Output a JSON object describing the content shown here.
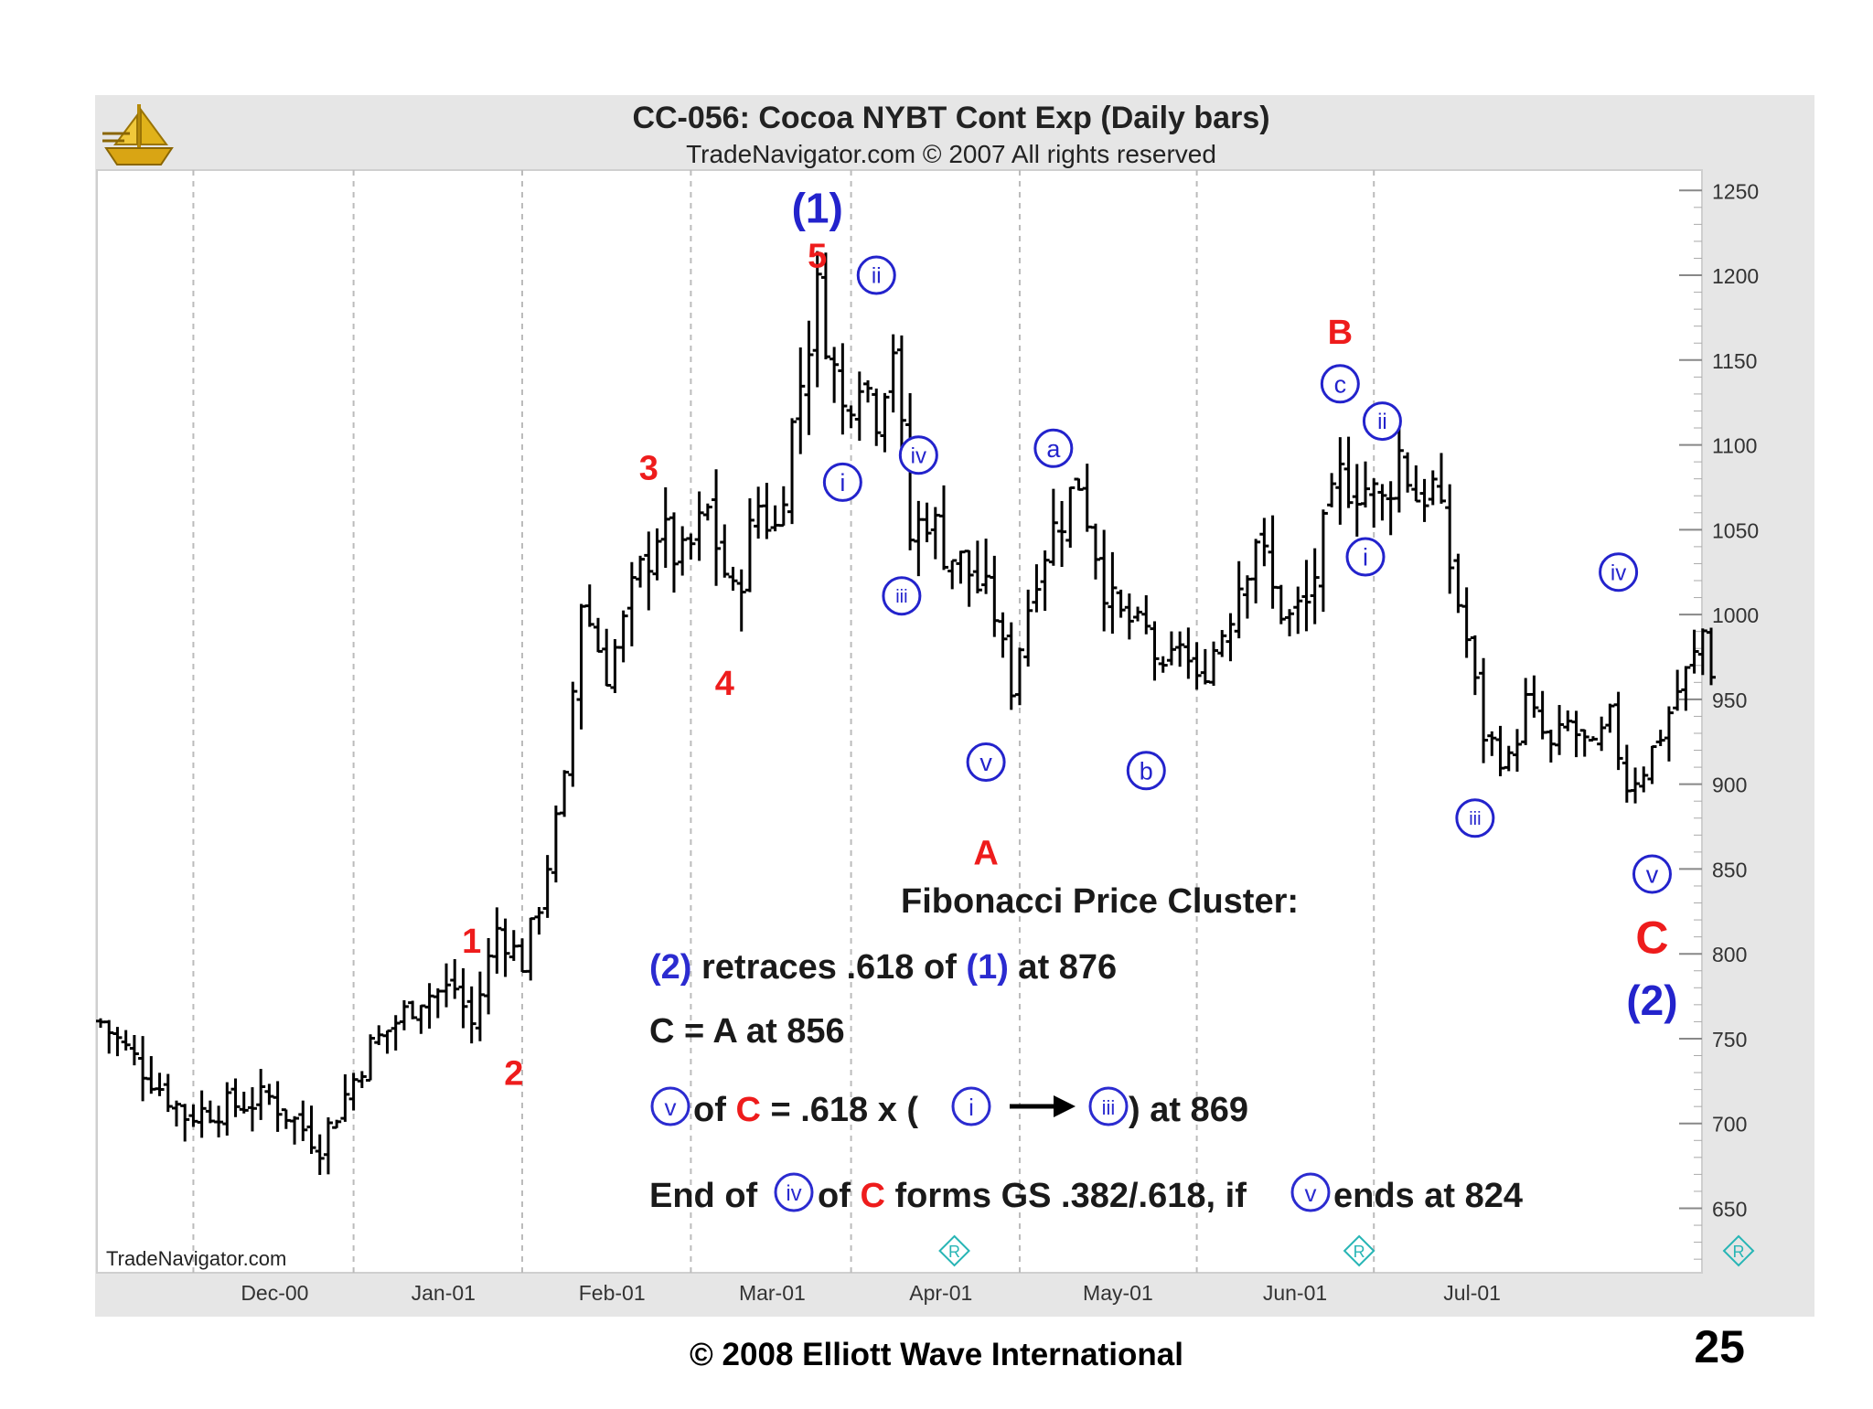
{
  "slide": {
    "copyright": "© 2008 Elliott Wave International",
    "page_number": "25"
  },
  "chart_data": {
    "type": "bar",
    "subtype": "ohlc",
    "title": "CC-056:  Cocoa NYBT Cont Exp  (Daily bars)",
    "subtitle": "TradeNavigator.com © 2007 All rights reserved",
    "watermark": "TradeNavigator.com",
    "logo": "gold-sailboat-logo",
    "y_ticks": [
      "1250",
      "1200",
      "1150",
      "1100",
      "1050",
      "1000",
      "950",
      "900",
      "850",
      "800",
      "750",
      "700",
      "650"
    ],
    "ylim": [
      612,
      1262
    ],
    "y_axis_side": "right",
    "x_ticks": [
      "Dec-00",
      "Jan-01",
      "Feb-01",
      "Mar-01",
      "Apr-01",
      "May-01",
      "Jun-01",
      "Jul-01"
    ],
    "grid": "vertical-dashed",
    "legend": "none",
    "colors": {
      "bars": "#000000",
      "red_label": "#ee1c1c",
      "blue_label": "#2323cc",
      "grid": "#bbbbbb",
      "frame": "#e6e6e6",
      "roll_marker": "#27b5b5"
    },
    "anchors": [
      {
        "t": 0,
        "p": 760
      },
      {
        "t": 10,
        "p": 705
      },
      {
        "t": 20,
        "p": 715
      },
      {
        "t": 26,
        "p": 688
      },
      {
        "t": 32,
        "p": 745
      },
      {
        "t": 38,
        "p": 775
      },
      {
        "t": 42,
        "p": 780
      },
      {
        "t": 44,
        "p": 758
      },
      {
        "t": 47,
        "p": 815
      },
      {
        "t": 50,
        "p": 795
      },
      {
        "t": 52,
        "p": 830
      },
      {
        "t": 55,
        "p": 900
      },
      {
        "t": 57,
        "p": 1010
      },
      {
        "t": 60,
        "p": 965
      },
      {
        "t": 63,
        "p": 1010
      },
      {
        "t": 66,
        "p": 1050
      },
      {
        "t": 69,
        "p": 1030
      },
      {
        "t": 72,
        "p": 1060
      },
      {
        "t": 75,
        "p": 1008
      },
      {
        "t": 78,
        "p": 1065
      },
      {
        "t": 80,
        "p": 1050
      },
      {
        "t": 82,
        "p": 1110
      },
      {
        "t": 85,
        "p": 1190
      },
      {
        "t": 88,
        "p": 1120
      },
      {
        "t": 90,
        "p": 1145
      },
      {
        "t": 92,
        "p": 1120
      },
      {
        "t": 94,
        "p": 1160
      },
      {
        "t": 96,
        "p": 1045
      },
      {
        "t": 98,
        "p": 1060
      },
      {
        "t": 100,
        "p": 1040
      },
      {
        "t": 103,
        "p": 1025
      },
      {
        "t": 106,
        "p": 1000
      },
      {
        "t": 108,
        "p": 958
      },
      {
        "t": 111,
        "p": 1030
      },
      {
        "t": 114,
        "p": 1060
      },
      {
        "t": 116,
        "p": 1080
      },
      {
        "t": 118,
        "p": 1040
      },
      {
        "t": 120,
        "p": 1002
      },
      {
        "t": 124,
        "p": 990
      },
      {
        "t": 126,
        "p": 962
      },
      {
        "t": 128,
        "p": 985
      },
      {
        "t": 130,
        "p": 958
      },
      {
        "t": 133,
        "p": 990
      },
      {
        "t": 135,
        "p": 1020
      },
      {
        "t": 137,
        "p": 1048
      },
      {
        "t": 139,
        "p": 1012
      },
      {
        "t": 141,
        "p": 998
      },
      {
        "t": 143,
        "p": 1005
      },
      {
        "t": 145,
        "p": 1045
      },
      {
        "t": 147,
        "p": 1080
      },
      {
        "t": 150,
        "p": 1075
      },
      {
        "t": 152,
        "p": 1065
      },
      {
        "t": 154,
        "p": 1095
      },
      {
        "t": 156,
        "p": 1070
      },
      {
        "t": 158,
        "p": 1075
      },
      {
        "t": 160,
        "p": 1030
      },
      {
        "t": 162,
        "p": 985
      },
      {
        "t": 164,
        "p": 930
      },
      {
        "t": 167,
        "p": 912
      },
      {
        "t": 169,
        "p": 948
      },
      {
        "t": 172,
        "p": 920
      },
      {
        "t": 174,
        "p": 935
      },
      {
        "t": 177,
        "p": 918
      },
      {
        "t": 179,
        "p": 938
      },
      {
        "t": 181,
        "p": 900
      },
      {
        "t": 183,
        "p": 910
      },
      {
        "t": 185,
        "p": 930
      },
      {
        "t": 187,
        "p": 955
      },
      {
        "t": 189,
        "p": 975
      },
      {
        "t": 190,
        "p": 990
      },
      {
        "t": 191,
        "p": 968
      }
    ],
    "gaps_after": [
      44,
      56,
      143,
      147
    ],
    "x_tick_positions_t": [
      20,
      40,
      60,
      79,
      99,
      120,
      141,
      162
    ],
    "wave_labels": [
      {
        "text": "(1)",
        "color": "red-blue",
        "style": "blue-paren-large",
        "t": 85,
        "p": 1240
      },
      {
        "text": "5",
        "style": "red",
        "t": 85,
        "p": 1212
      },
      {
        "text": "ii",
        "style": "blue-circle",
        "t": 92,
        "p": 1200
      },
      {
        "text": "3",
        "style": "red",
        "t": 65,
        "p": 1087
      },
      {
        "text": "i",
        "style": "blue-circle",
        "t": 88,
        "p": 1078
      },
      {
        "text": "iv",
        "style": "blue-circle",
        "t": 97,
        "p": 1094
      },
      {
        "text": "a",
        "style": "blue-circle",
        "t": 113,
        "p": 1098
      },
      {
        "text": "iii",
        "style": "blue-circle",
        "t": 95,
        "p": 1011
      },
      {
        "text": "4",
        "style": "red",
        "t": 74,
        "p": 960
      },
      {
        "text": "v",
        "style": "blue-circle",
        "t": 105,
        "p": 913
      },
      {
        "text": "b",
        "style": "blue-circle",
        "t": 124,
        "p": 908
      },
      {
        "text": "A",
        "style": "red",
        "t": 105,
        "p": 860
      },
      {
        "text": "B",
        "style": "red",
        "t": 147,
        "p": 1167
      },
      {
        "text": "c",
        "style": "blue-circle",
        "t": 147,
        "p": 1136
      },
      {
        "text": "ii",
        "style": "blue-circle",
        "t": 152,
        "p": 1114
      },
      {
        "text": "i",
        "style": "blue-circle",
        "t": 150,
        "p": 1034
      },
      {
        "text": "iv",
        "style": "blue-circle",
        "t": 180,
        "p": 1025
      },
      {
        "text": "iii",
        "style": "blue-circle",
        "t": 163,
        "p": 880
      },
      {
        "text": "v",
        "style": "blue-circle",
        "t": 184,
        "p": 847
      },
      {
        "text": "1",
        "style": "red",
        "t": 44,
        "p": 808
      },
      {
        "text": "2",
        "style": "red",
        "t": 49,
        "p": 730
      },
      {
        "text": "C",
        "style": "red-large",
        "t": 184,
        "p": 810
      },
      {
        "text": "(2)",
        "style": "blue-paren-large",
        "t": 184,
        "p": 773
      }
    ],
    "roll_markers_t": [
      98,
      146,
      191
    ],
    "annotation": {
      "heading": "Fibonacci Price Cluster:",
      "line1": {
        "a": "(2)",
        "b": " retraces .618 of ",
        "c": "(1)",
        "d": " at 876"
      },
      "line2": "C = A at 856",
      "line3": {
        "circ1": "v",
        "a": " of ",
        "b": "C",
        "c": " = .618  x (",
        "circ2": "i",
        "circ3": "iii",
        "d": ") at 869"
      },
      "line4": {
        "a": "End of ",
        "circ1": "iv",
        "b": " of ",
        "c": "C",
        "d": " forms GS .382/.618, if ",
        "circ2": "v",
        "e": " ends at 824"
      }
    }
  }
}
